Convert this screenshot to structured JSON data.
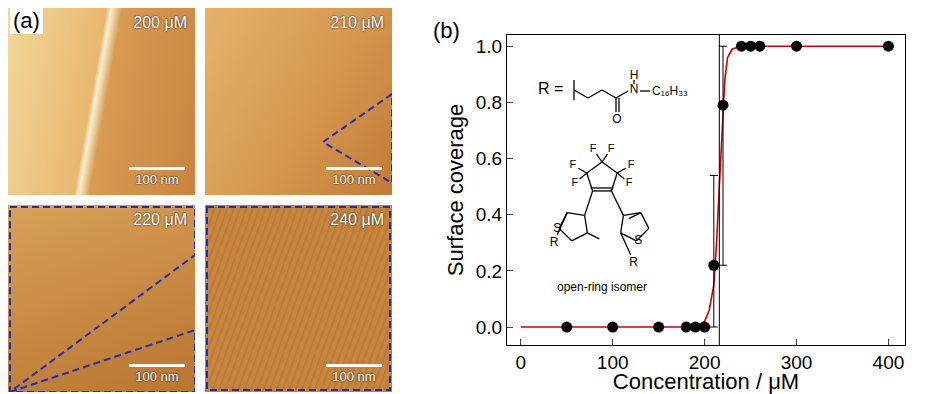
{
  "chart_data": {
    "type": "scatter",
    "panel_label": "(b)",
    "x_label": "Concentration / μM",
    "y_label": "Surface coverage",
    "xlim": [
      -15,
      418
    ],
    "ylim": [
      -0.064,
      1.04
    ],
    "xticks": [
      0,
      100,
      200,
      300,
      400
    ],
    "yticks": [
      {
        "value": 0,
        "label": "0.0"
      },
      0.2,
      0.4,
      0.6,
      0.8,
      {
        "value": 1,
        "label": "1.0"
      }
    ],
    "threshold": 216,
    "series": [
      {
        "type": "scatter",
        "marker": "circle",
        "color": "#000000",
        "x": [
          50,
          100,
          150,
          180,
          190,
          200,
          210,
          220,
          240,
          250,
          260,
          300,
          400
        ],
        "values": [
          0,
          0,
          0,
          0,
          0,
          0,
          0.22,
          0.79,
          1,
          1,
          1,
          1,
          1
        ],
        "error_plus": [
          null,
          null,
          null,
          null,
          null,
          null,
          0.32,
          0.21,
          null,
          null,
          null,
          null,
          null
        ],
        "error_minus": [
          null,
          null,
          null,
          null,
          null,
          null,
          0.22,
          0.57,
          null,
          null,
          null,
          null,
          null
        ]
      },
      {
        "type": "line",
        "line_style": "solid",
        "color": "#cc0000",
        "x": [
          0,
          150,
          190,
          200,
          205,
          210,
          213,
          216,
          219,
          222,
          225,
          230,
          240,
          400
        ],
        "values": [
          0,
          0,
          0,
          0.02,
          0.06,
          0.15,
          0.3,
          0.5,
          0.72,
          0.88,
          0.96,
          0.99,
          1,
          1
        ]
      }
    ],
    "structure": {
      "r_prefix": "R =",
      "r_atoms": {
        "N": "N",
        "H": "H",
        "O": "O",
        "chain": "C₁₆H₃₃"
      },
      "fluorines": [
        "F",
        "F",
        "F",
        "F",
        "F",
        "F"
      ],
      "sulfurs": [
        "S",
        "S"
      ],
      "r_ends": [
        "R",
        "R"
      ],
      "caption": "open-ring isomer"
    }
  },
  "images": {
    "panel_label": "(a)",
    "tiles": [
      {
        "label": "200 μM",
        "scale": "100 nm"
      },
      {
        "label": "210 μM",
        "scale": "100 nm"
      },
      {
        "label": "220 μM",
        "scale": "100 nm"
      },
      {
        "label": "240 μM",
        "scale": "100 nm"
      }
    ]
  }
}
